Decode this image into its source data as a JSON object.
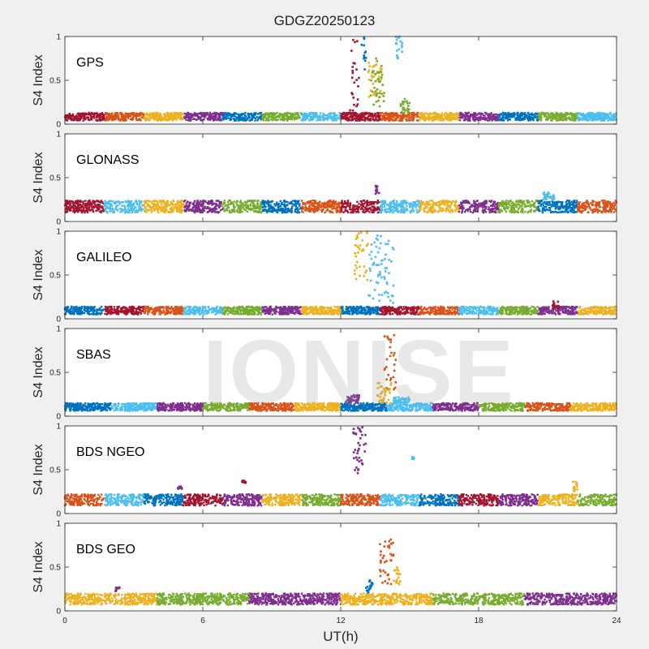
{
  "figure": {
    "title": "GDGZ20250123",
    "watermark": "IONISE",
    "xlabel": "UT(h)",
    "ylabel": "S4 Index",
    "xticks": [
      "0",
      "6",
      "12",
      "18",
      "24"
    ],
    "yticks": [
      "0",
      "0.5",
      "1"
    ]
  },
  "colors": {
    "blue": "#0072BD",
    "orange": "#D95319",
    "yellow": "#EDB120",
    "purple": "#7E2F8E",
    "green": "#77AC30",
    "cyan": "#4DBEEE",
    "red": "#A2142F",
    "background": "#f0f0f0",
    "axes_bg": "#ffffff"
  },
  "chart_data": [
    {
      "type": "scatter",
      "label": "GPS",
      "xlim": [
        0,
        24
      ],
      "ylim": [
        0,
        1
      ],
      "baseline": {
        "min": 0.04,
        "max": 0.13
      },
      "base_colors": [
        "red",
        "orange",
        "yellow",
        "purple",
        "blue",
        "green",
        "cyan"
      ],
      "events": [
        {
          "color": "red",
          "x": [
            12.4,
            12.8
          ],
          "y": [
            0.12,
            1.0
          ]
        },
        {
          "color": "blue",
          "x": [
            12.9,
            13.1
          ],
          "y": [
            0.6,
            1.0
          ]
        },
        {
          "color": "yellow",
          "x": [
            13.2,
            13.8
          ],
          "y": [
            0.3,
            0.7
          ]
        },
        {
          "color": "green",
          "x": [
            13.3,
            13.9
          ],
          "y": [
            0.2,
            0.75
          ]
        },
        {
          "color": "cyan",
          "x": [
            14.4,
            14.7
          ],
          "y": [
            0.75,
            1.0
          ]
        },
        {
          "color": "green",
          "x": [
            14.6,
            15.0
          ],
          "y": [
            0.12,
            0.3
          ]
        }
      ]
    },
    {
      "type": "scatter",
      "label": "GLONASS",
      "xlim": [
        0,
        24
      ],
      "ylim": [
        0,
        1
      ],
      "baseline": {
        "min": 0.1,
        "max": 0.24
      },
      "base_colors": [
        "red",
        "cyan",
        "yellow",
        "purple",
        "green",
        "blue",
        "orange"
      ],
      "events": [
        {
          "color": "purple",
          "x": [
            13.5,
            13.7
          ],
          "y": [
            0.25,
            0.46
          ]
        },
        {
          "color": "cyan",
          "x": [
            20.8,
            21.3
          ],
          "y": [
            0.24,
            0.33
          ]
        }
      ]
    },
    {
      "type": "scatter",
      "label": "GALILEO",
      "xlim": [
        0,
        24
      ],
      "ylim": [
        0,
        1
      ],
      "baseline": {
        "min": 0.05,
        "max": 0.14
      },
      "base_colors": [
        "blue",
        "red",
        "orange",
        "cyan",
        "green",
        "purple",
        "yellow"
      ],
      "events": [
        {
          "color": "yellow",
          "x": [
            12.6,
            13.2
          ],
          "y": [
            0.4,
            1.0
          ]
        },
        {
          "color": "cyan",
          "x": [
            13.2,
            14.3
          ],
          "y": [
            0.15,
            0.95
          ]
        },
        {
          "color": "red",
          "x": [
            21.2,
            21.5
          ],
          "y": [
            0.12,
            0.2
          ]
        }
      ]
    },
    {
      "type": "scatter",
      "label": "SBAS",
      "xlim": [
        0,
        24
      ],
      "ylim": [
        0,
        1
      ],
      "baseline": {
        "min": 0.06,
        "max": 0.15
      },
      "base_colors": [
        "blue",
        "cyan",
        "purple",
        "green",
        "orange",
        "yellow"
      ],
      "events": [
        {
          "color": "orange",
          "x": [
            13.9,
            14.4
          ],
          "y": [
            0.25,
            0.97
          ]
        },
        {
          "color": "yellow",
          "x": [
            13.6,
            14.2
          ],
          "y": [
            0.15,
            0.4
          ]
        },
        {
          "color": "purple",
          "x": [
            12.2,
            12.8
          ],
          "y": [
            0.15,
            0.25
          ]
        },
        {
          "color": "cyan",
          "x": [
            14.3,
            15.0
          ],
          "y": [
            0.15,
            0.22
          ]
        }
      ]
    },
    {
      "type": "scatter",
      "label": "BDS NGEO",
      "xlim": [
        0,
        24
      ],
      "ylim": [
        0,
        1
      ],
      "baseline": {
        "min": 0.09,
        "max": 0.22
      },
      "base_colors": [
        "orange",
        "cyan",
        "blue",
        "red",
        "purple",
        "yellow",
        "green"
      ],
      "events": [
        {
          "color": "purple",
          "x": [
            12.5,
            13.1
          ],
          "y": [
            0.45,
            1.0
          ]
        },
        {
          "color": "cyan",
          "x": [
            15.1,
            15.2
          ],
          "y": [
            0.62,
            0.65
          ]
        },
        {
          "color": "yellow",
          "x": [
            22.1,
            22.3
          ],
          "y": [
            0.22,
            0.42
          ]
        },
        {
          "color": "red",
          "x": [
            7.7,
            7.9
          ],
          "y": [
            0.35,
            0.38
          ]
        },
        {
          "color": "purple",
          "x": [
            4.9,
            5.1
          ],
          "y": [
            0.28,
            0.31
          ]
        }
      ]
    },
    {
      "type": "scatter",
      "label": "BDS GEO",
      "xlim": [
        0,
        24
      ],
      "ylim": [
        0,
        1
      ],
      "baseline": {
        "min": 0.07,
        "max": 0.2
      },
      "base_colors": [
        "yellow",
        "green",
        "purple"
      ],
      "events": [
        {
          "color": "orange",
          "x": [
            13.7,
            14.3
          ],
          "y": [
            0.3,
            0.82
          ]
        },
        {
          "color": "blue",
          "x": [
            13.1,
            13.4
          ],
          "y": [
            0.2,
            0.36
          ]
        },
        {
          "color": "yellow",
          "x": [
            14.3,
            14.6
          ],
          "y": [
            0.3,
            0.5
          ]
        },
        {
          "color": "purple",
          "x": [
            2.2,
            2.4
          ],
          "y": [
            0.22,
            0.27
          ]
        }
      ]
    }
  ]
}
